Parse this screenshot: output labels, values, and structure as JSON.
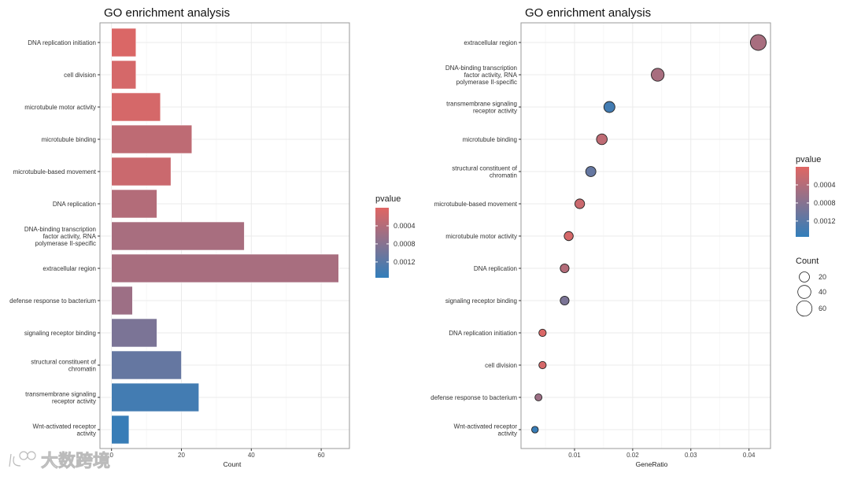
{
  "watermark": "大数跨境",
  "chart_data": [
    {
      "type": "bar",
      "orientation": "horizontal",
      "title": "GO enrichment analysis",
      "xlabel": "Count",
      "ylabel": "",
      "xlim": [
        0,
        68
      ],
      "xticks": [
        0,
        20,
        40,
        60
      ],
      "grid": true,
      "categories": [
        [
          "DNA replication initiation"
        ],
        [
          "cell division"
        ],
        [
          "microtubule motor activity"
        ],
        [
          "microtubule binding"
        ],
        [
          "microtubule-based movement"
        ],
        [
          "DNA replication"
        ],
        [
          "DNA-binding transcription",
          "factor activity, RNA",
          "polymerase II-specific"
        ],
        [
          "extracellular region"
        ],
        [
          "defense response to bacterium"
        ],
        [
          "signaling receptor binding"
        ],
        [
          "structural constituent of",
          "chromatin"
        ],
        [
          "transmembrane signaling",
          "receptor activity"
        ],
        [
          "Wnt-activated receptor",
          "activity"
        ]
      ],
      "values": [
        7,
        7,
        14,
        23,
        17,
        13,
        38,
        65,
        6,
        13,
        20,
        25,
        5
      ],
      "pvalues": [
        5e-05,
        0.0001,
        0.0001,
        0.0003,
        0.0002,
        0.0004,
        0.0005,
        0.0005,
        0.0006,
        0.0009,
        0.0011,
        0.0014,
        0.0015
      ],
      "color_legend": {
        "title": "pvalue",
        "ticks": [
          "0.0004",
          "0.0008",
          "0.0012"
        ],
        "tick_values": [
          0.0004,
          0.0008,
          0.0012
        ],
        "range": [
          0,
          0.00155
        ],
        "low_color": "#e06663",
        "high_color": "#327eba",
        "placement": "right"
      }
    },
    {
      "type": "scatter",
      "title": "GO enrichment analysis",
      "xlabel": "GeneRatio",
      "ylabel": "",
      "xlim": [
        0.0008,
        0.0437
      ],
      "xticks": [
        "0.01",
        "0.02",
        "0.03",
        "0.04"
      ],
      "xtick_values": [
        0.01,
        0.02,
        0.03,
        0.04
      ],
      "grid": true,
      "categories": [
        [
          "extracellular region"
        ],
        [
          "DNA-binding transcription",
          "factor activity, RNA",
          "polymerase II-specific"
        ],
        [
          "transmembrane signaling",
          "receptor activity"
        ],
        [
          "microtubule binding"
        ],
        [
          "structural constituent of",
          "chromatin"
        ],
        [
          "microtubule-based movement"
        ],
        [
          "microtubule motor activity"
        ],
        [
          "DNA replication"
        ],
        [
          "signaling receptor binding"
        ],
        [
          "DNA replication initiation"
        ],
        [
          "cell division"
        ],
        [
          "defense response to bacterium"
        ],
        [
          "Wnt-activated receptor",
          "activity"
        ]
      ],
      "gene_ratio": [
        0.0416,
        0.0243,
        0.016,
        0.0147,
        0.0128,
        0.0109,
        0.009,
        0.0083,
        0.0083,
        0.0045,
        0.0045,
        0.0038,
        0.0032
      ],
      "count": [
        65,
        38,
        25,
        23,
        20,
        17,
        14,
        13,
        13,
        7,
        7,
        6,
        5
      ],
      "pvalues": [
        0.0005,
        0.0005,
        0.0014,
        0.0003,
        0.0011,
        0.0002,
        0.0001,
        0.0004,
        0.0009,
        5e-05,
        0.0001,
        0.0006,
        0.0015
      ],
      "color_legend": {
        "title": "pvalue",
        "ticks": [
          "0.0004",
          "0.0008",
          "0.0012"
        ],
        "tick_values": [
          0.0004,
          0.0008,
          0.0012
        ],
        "range": [
          0,
          0.00155
        ],
        "low_color": "#e06663",
        "high_color": "#327eba",
        "placement": "right"
      },
      "size_legend": {
        "title": "Count",
        "labels": [
          "20",
          "40",
          "60"
        ],
        "values": [
          20,
          40,
          60
        ],
        "placement": "right"
      }
    }
  ]
}
